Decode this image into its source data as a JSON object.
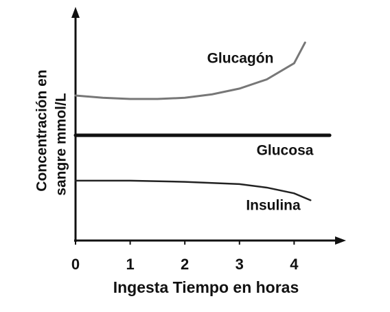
{
  "chart_data": {
    "type": "line",
    "ylabel": [
      "Concentración en",
      "sangre mmol/L"
    ],
    "xlabel": "Ingesta Tiempo en horas",
    "xlim": [
      0,
      4.9
    ],
    "xticks": [
      0,
      1,
      2,
      3,
      4
    ],
    "ylim": [
      0,
      10
    ],
    "series": [
      {
        "name": "Glucagón",
        "color": "#777777",
        "x": [
          0,
          0.5,
          1,
          1.5,
          2,
          2.5,
          3,
          3.5,
          4,
          4.2
        ],
        "values": [
          6.3,
          6.2,
          6.15,
          6.15,
          6.2,
          6.35,
          6.6,
          7.0,
          7.7,
          8.6
        ]
      },
      {
        "name": "Glucosa",
        "color": "#111111",
        "x": [
          0,
          4.65
        ],
        "values": [
          4.57,
          4.57
        ]
      },
      {
        "name": "Insulina",
        "color": "#222222",
        "x": [
          0,
          1,
          2,
          3,
          3.5,
          4,
          4.3
        ],
        "values": [
          2.6,
          2.6,
          2.55,
          2.45,
          2.3,
          2.05,
          1.75
        ]
      }
    ]
  }
}
